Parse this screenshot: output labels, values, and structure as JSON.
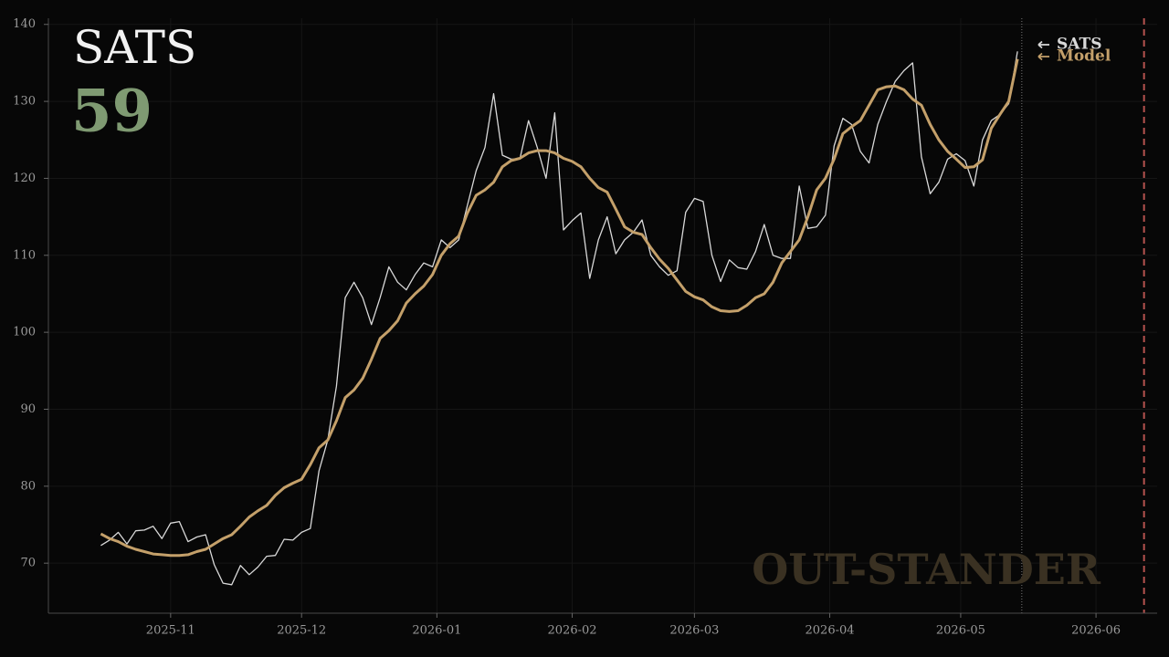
{
  "chart_data": {
    "type": "line",
    "title": "SATS",
    "score": 59,
    "score_color": "#7f9a72",
    "watermark": "OUT-STANDER",
    "x": [
      15,
      17,
      19,
      21,
      23,
      25,
      27,
      29,
      31,
      33,
      35,
      37,
      39,
      41,
      43,
      45,
      47,
      49,
      51,
      53,
      55,
      57,
      59,
      61,
      63,
      65,
      67,
      69,
      71,
      73,
      75,
      77,
      79,
      81,
      83,
      85,
      87,
      89,
      91,
      93,
      95,
      97,
      99,
      101,
      103,
      105,
      107,
      109,
      111,
      113,
      115,
      117,
      119,
      121,
      123,
      125,
      127,
      129,
      131,
      133,
      135,
      137,
      139,
      141,
      143,
      145,
      147,
      149,
      151,
      153,
      155,
      157,
      159,
      161,
      163,
      165,
      167,
      169,
      171,
      173,
      175,
      177,
      179,
      181,
      183,
      185,
      187,
      189,
      191,
      193,
      195,
      197,
      199,
      201,
      203,
      205,
      207,
      209,
      211,
      213,
      215,
      217,
      219,
      221,
      223,
      225
    ],
    "series": [
      {
        "name": "SATS",
        "color": "#d9d9d9",
        "width": 1.3,
        "values": [
          72.3,
          73,
          74,
          72.5,
          74.2,
          74.3,
          74.8,
          73.2,
          75.2,
          75.4,
          72.8,
          73.4,
          73.7,
          69.8,
          67.4,
          67.2,
          69.7,
          68.5,
          69.5,
          70.9,
          71,
          73.1,
          73,
          74,
          74.5,
          82,
          86,
          93,
          104.5,
          106.5,
          104.5,
          101,
          104.5,
          108.5,
          106.5,
          105.5,
          107.5,
          109,
          108.5,
          112,
          111,
          112,
          116.5,
          121,
          124,
          131,
          123,
          122.5,
          122.5,
          127.5,
          124,
          120,
          128.5,
          113.3,
          114.5,
          115.5,
          107,
          112,
          115,
          110.2,
          112,
          113,
          114.6,
          110,
          108.5,
          107.4,
          108,
          115.6,
          117.4,
          117,
          110,
          106.6,
          109.4,
          108.4,
          108.2,
          110.5,
          114,
          110,
          109.6,
          109.6,
          119,
          113.5,
          113.7,
          115.2,
          124.2,
          127.8,
          127,
          123.5,
          122,
          127,
          130,
          132.6,
          134,
          135,
          122.8,
          118,
          119.5,
          122.5,
          123.2,
          122.3,
          119,
          125,
          127.5,
          128.3,
          129.7,
          136.5
        ]
      },
      {
        "name": "Model",
        "color": "#c4a06a",
        "width": 3,
        "values": [
          73.8,
          73.2,
          72.8,
          72.2,
          71.8,
          71.5,
          71.2,
          71.1,
          71,
          71,
          71.1,
          71.5,
          71.8,
          72.5,
          73.2,
          73.7,
          74.8,
          76,
          76.8,
          77.5,
          78.8,
          79.8,
          80.4,
          80.9,
          82.8,
          85,
          86,
          88.5,
          91.5,
          92.5,
          94,
          96.5,
          99.2,
          100.2,
          101.5,
          103.8,
          105,
          106,
          107.5,
          110,
          111.5,
          112.5,
          115.5,
          117.8,
          118.5,
          119.5,
          121.5,
          122.3,
          122.6,
          123.3,
          123.6,
          123.6,
          123.3,
          122.6,
          122.2,
          121.5,
          120,
          118.8,
          118.2,
          116,
          113.7,
          113,
          112.7,
          111,
          109.5,
          108.3,
          106.8,
          105.3,
          104.6,
          104.2,
          103.3,
          102.8,
          102.7,
          102.8,
          103.5,
          104.5,
          105,
          106.5,
          109,
          110.5,
          112,
          115,
          118.5,
          120,
          122.5,
          125.8,
          126.7,
          127.5,
          129.5,
          131.5,
          131.9,
          132,
          131.5,
          130.3,
          129.5,
          127,
          125,
          123.5,
          122.5,
          121.4,
          121.5,
          122.4,
          126.5,
          128.3,
          130,
          135.5
        ]
      }
    ],
    "xlim": [
      3,
      257
    ],
    "xticks": [
      {
        "value": 31,
        "label": "2025-11"
      },
      {
        "value": 61,
        "label": "2025-12"
      },
      {
        "value": 92,
        "label": "2026-01"
      },
      {
        "value": 123,
        "label": "2026-02"
      },
      {
        "value": 151,
        "label": "2026-03"
      },
      {
        "value": 182,
        "label": "2026-04"
      },
      {
        "value": 212,
        "label": "2026-05"
      },
      {
        "value": 243,
        "label": "2026-06"
      }
    ],
    "ylim": [
      63.5,
      140.8
    ],
    "yticks": [
      70,
      80,
      90,
      100,
      110,
      120,
      130,
      140
    ],
    "grid": true,
    "vlines": [
      {
        "x": 226,
        "color": "#777777",
        "style": "dotted"
      },
      {
        "x": 254,
        "color": "#b5524e",
        "style": "dashed"
      }
    ],
    "legend": "upper right"
  }
}
